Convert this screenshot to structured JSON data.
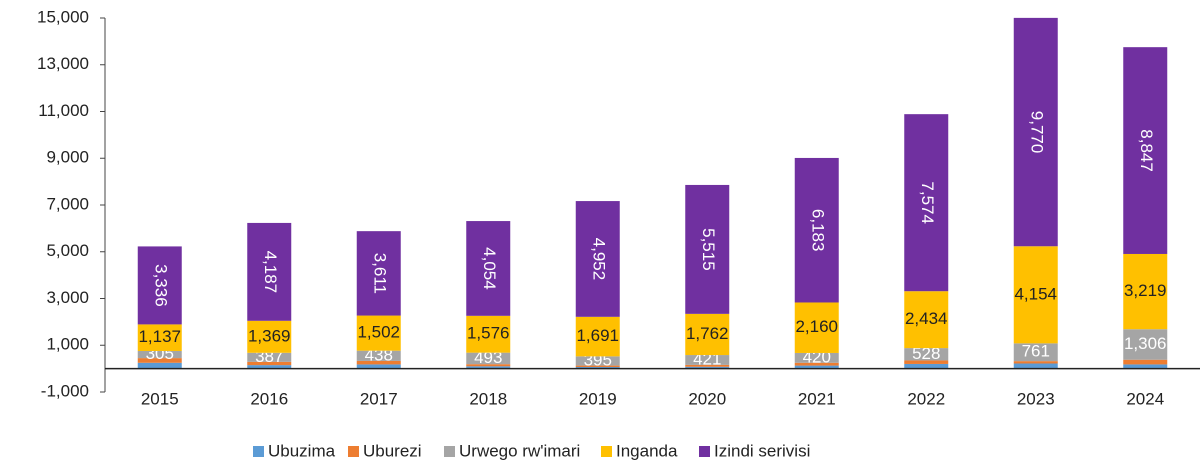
{
  "chart_data": {
    "type": "stacked_bar",
    "categories": [
      "2015",
      "2016",
      "2017",
      "2018",
      "2019",
      "2020",
      "2021",
      "2022",
      "2023",
      "2024"
    ],
    "series": [
      {
        "name": "Ubuzima",
        "color": "#5b9bd5",
        "values": [
          250,
          150,
          180,
          100,
          70,
          80,
          130,
          200,
          220,
          180
        ]
      },
      {
        "name": "Uburezi",
        "color": "#ed7d31",
        "values": [
          200,
          140,
          150,
          90,
          60,
          80,
          120,
          150,
          100,
          200
        ]
      },
      {
        "name": "Urwego rw'imari",
        "color": "#a5a5a5",
        "values": [
          305,
          387,
          438,
          493,
          395,
          421,
          420,
          528,
          761,
          1306
        ],
        "value_labels": [
          "305",
          "387",
          "438",
          "493",
          "395",
          "421",
          "420",
          "528",
          "761",
          "1,306"
        ]
      },
      {
        "name": "Inganda",
        "color": "#ffc000",
        "values": [
          1137,
          1369,
          1502,
          1576,
          1691,
          1762,
          2160,
          2434,
          4154,
          3219
        ],
        "value_labels": [
          "1,137",
          "1,369",
          "1,502",
          "1,576",
          "1,691",
          "1,762",
          "2,160",
          "2,434",
          "4,154",
          "3,219"
        ]
      },
      {
        "name": "Izindi serivisi",
        "color": "#7030a0",
        "values": [
          3336,
          4187,
          3611,
          4054,
          4952,
          5515,
          6183,
          7574,
          9770,
          8847
        ],
        "value_labels": [
          "3,336",
          "4,187",
          "3,611",
          "4,054",
          "4,952",
          "5,515",
          "6,183",
          "7,574",
          "9,770",
          "8,847"
        ]
      }
    ],
    "ylim": [
      -1000,
      15000
    ],
    "yticks": [
      {
        "value": -1000,
        "label": "-1,000"
      },
      {
        "value": 1000,
        "label": "1,000"
      },
      {
        "value": 3000,
        "label": "3,000"
      },
      {
        "value": 5000,
        "label": "5,000"
      },
      {
        "value": 7000,
        "label": "7,000"
      },
      {
        "value": 9000,
        "label": "9,000"
      },
      {
        "value": 11000,
        "label": "11,000"
      },
      {
        "value": 13000,
        "label": "13,000"
      },
      {
        "value": 15000,
        "label": "15,000"
      }
    ],
    "grid": false,
    "legend": "bottom"
  }
}
